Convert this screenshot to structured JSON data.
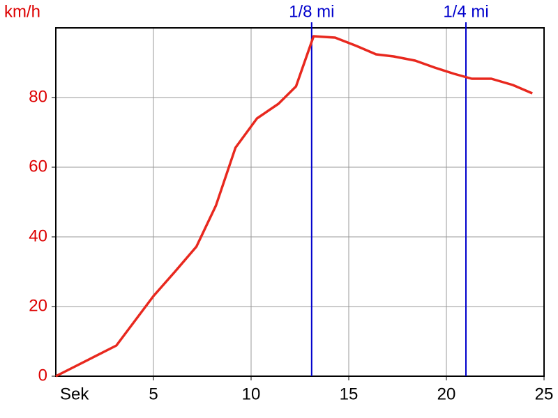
{
  "chart_data": {
    "type": "line",
    "y_label": "km/h",
    "x_label": "Sek",
    "x": [
      0,
      3.1,
      5.0,
      6.1,
      7.2,
      8.2,
      9.2,
      10.3,
      11.4,
      12.3,
      13.2,
      14.3,
      15.4,
      16.4,
      17.3,
      18.4,
      19.4,
      20.4,
      21.3,
      22.3,
      23.4,
      24.4
    ],
    "series": [
      {
        "name": "km/h",
        "color": "#e8281e",
        "values": [
          0,
          8.8,
          23,
          30,
          37.2,
          49,
          65.6,
          74,
          78.2,
          83.2,
          97.6,
          97.2,
          94.8,
          92.4,
          91.8,
          90.6,
          88.6,
          86.8,
          85.4,
          85.4,
          83.6,
          81.2
        ]
      }
    ],
    "xlim": [
      0,
      25
    ],
    "xticks": [
      5,
      10,
      15,
      20,
      25
    ],
    "ylim": [
      0,
      100
    ],
    "yticks": [
      0,
      20,
      40,
      60,
      80
    ],
    "grid": true,
    "markers": [
      {
        "label": "1/8 mi",
        "x": 13.1,
        "color": "#0000cc"
      },
      {
        "label": "1/4 mi",
        "x": 21.0,
        "color": "#0000cc"
      }
    ]
  }
}
